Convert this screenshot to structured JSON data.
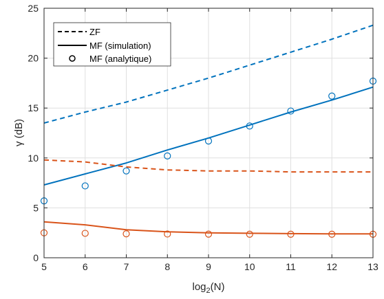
{
  "chart_data": {
    "type": "line",
    "xlabel": "log",
    "xlabel_sub": "2",
    "xlabel_suffix": "(N)",
    "ylabel": "γ (dB)",
    "xlim": [
      5,
      13
    ],
    "ylim": [
      0,
      25
    ],
    "xticks": [
      5,
      6,
      7,
      8,
      9,
      10,
      11,
      12,
      13
    ],
    "yticks": [
      0,
      5,
      10,
      15,
      20,
      25
    ],
    "grid": true,
    "legend_position": "top-left",
    "x": [
      5,
      6,
      7,
      8,
      9,
      10,
      11,
      12,
      13
    ],
    "series": [
      {
        "name": "ZF",
        "legend": true,
        "style": "dashed",
        "color": "#0072BD",
        "values": [
          13.5,
          14.6,
          15.6,
          16.8,
          18.0,
          19.3,
          20.6,
          21.9,
          23.3
        ]
      },
      {
        "name": "MF (simulation)",
        "legend": true,
        "style": "solid",
        "color": "#0072BD",
        "values": [
          7.3,
          8.4,
          9.5,
          10.8,
          12.0,
          13.3,
          14.6,
          15.8,
          17.1
        ]
      },
      {
        "name": "MF (analytique)",
        "legend": true,
        "style": "markers",
        "color": "#0072BD",
        "values": [
          5.7,
          7.2,
          8.7,
          10.2,
          11.7,
          13.2,
          14.7,
          16.2,
          17.7
        ]
      },
      {
        "name": "",
        "legend": false,
        "style": "dashed",
        "color": "#D95319",
        "values": [
          9.8,
          9.6,
          9.1,
          8.8,
          8.7,
          8.7,
          8.6,
          8.6,
          8.6
        ]
      },
      {
        "name": "",
        "legend": false,
        "style": "solid",
        "color": "#D95319",
        "values": [
          3.6,
          3.3,
          2.8,
          2.6,
          2.5,
          2.45,
          2.42,
          2.4,
          2.4
        ]
      },
      {
        "name": "",
        "legend": false,
        "style": "markers",
        "color": "#D95319",
        "values": [
          2.5,
          2.45,
          2.4,
          2.38,
          2.37,
          2.36,
          2.36,
          2.36,
          2.36
        ]
      }
    ],
    "legend_entries": [
      "ZF",
      "MF (simulation)",
      "MF (analytique)"
    ]
  }
}
